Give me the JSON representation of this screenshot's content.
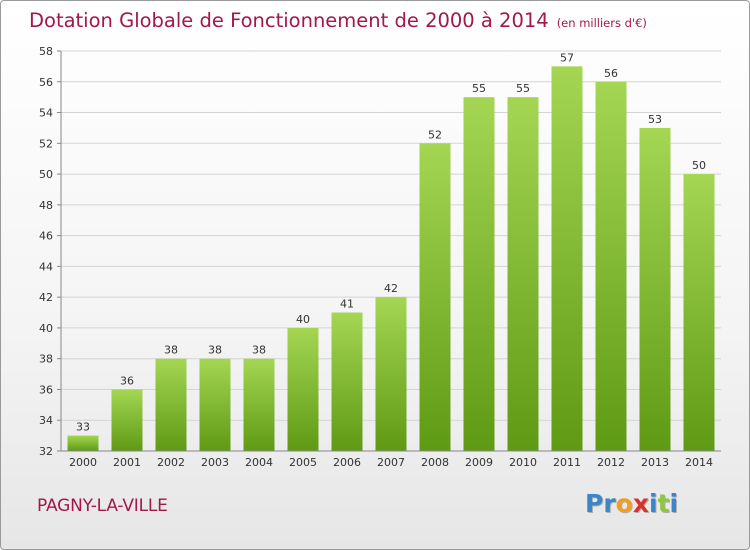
{
  "header": {
    "title": "Dotation Globale de Fonctionnement de 2000 à 2014",
    "subtitle": "(en milliers d'€)"
  },
  "footer": {
    "location": "PAGNY-LA-VILLE",
    "brand_letters": [
      {
        "ch": "P",
        "color": "#3a86c8"
      },
      {
        "ch": "r",
        "color": "#3a86c8"
      },
      {
        "ch": "o",
        "color": "#f0a020"
      },
      {
        "ch": "x",
        "color": "#d8322f"
      },
      {
        "ch": "i",
        "color": "#3a86c8"
      },
      {
        "ch": "t",
        "color": "#8dc63f"
      },
      {
        "ch": "i",
        "color": "#3a86c8"
      }
    ]
  },
  "chart_data": {
    "type": "bar",
    "title": "Dotation Globale de Fonctionnement de 2000 à 2014",
    "subtitle": "(en milliers d'€)",
    "xlabel": "",
    "ylabel": "",
    "categories": [
      "2000",
      "2001",
      "2002",
      "2003",
      "2004",
      "2005",
      "2006",
      "2007",
      "2008",
      "2009",
      "2010",
      "2011",
      "2012",
      "2013",
      "2014"
    ],
    "values": [
      33,
      36,
      38,
      38,
      38,
      40,
      41,
      42,
      52,
      55,
      55,
      57,
      56,
      53,
      50
    ],
    "ylim": [
      32,
      58
    ],
    "yticks": [
      32,
      34,
      36,
      38,
      40,
      42,
      44,
      46,
      48,
      50,
      52,
      54,
      56,
      58
    ],
    "grid": true,
    "legend": "none",
    "bar_color_top": "#a4d653",
    "bar_color_bottom": "#5f9a14"
  }
}
